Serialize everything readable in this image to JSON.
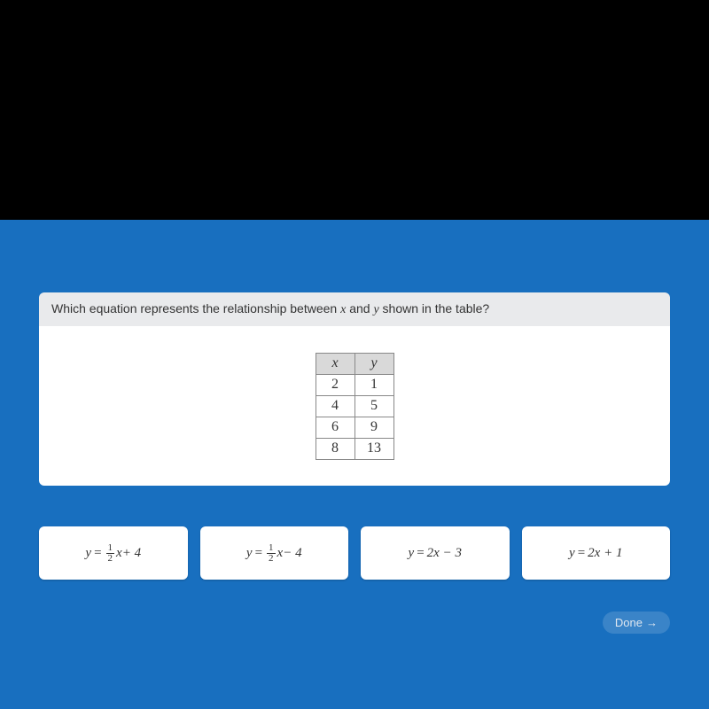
{
  "colors": {
    "page_bg": "#000000",
    "panel_bg": "#186fbf",
    "header_bg": "#e9eaec",
    "card_bg": "#ffffff",
    "table_border": "#888888",
    "table_header_bg": "#d9d9d9",
    "text": "#333333",
    "done_bg": "rgba(255,255,255,0.15)",
    "done_text": "#e0e7f0"
  },
  "question": {
    "prefix": "Which equation represents the relationship between ",
    "var1": "x",
    "mid": " and ",
    "var2": "y",
    "suffix": " shown in the table?"
  },
  "table": {
    "headers": {
      "x": "x",
      "y": "y"
    },
    "rows": [
      {
        "x": "2",
        "y": "1"
      },
      {
        "x": "4",
        "y": "5"
      },
      {
        "x": "6",
        "y": "9"
      },
      {
        "x": "8",
        "y": "13"
      }
    ]
  },
  "options": {
    "a": {
      "y": "y",
      "eq": "=",
      "frac_num": "1",
      "frac_den": "2",
      "x": "x",
      "tail": " + 4"
    },
    "b": {
      "y": "y",
      "eq": "=",
      "frac_num": "1",
      "frac_den": "2",
      "x": "x",
      "tail": " − 4"
    },
    "c": {
      "y": "y",
      "eq": "=",
      "body": " 2x − 3"
    },
    "d": {
      "y": "y",
      "eq": "=",
      "body": " 2x + 1"
    }
  },
  "done": {
    "label": "Done",
    "arrow": "→"
  }
}
